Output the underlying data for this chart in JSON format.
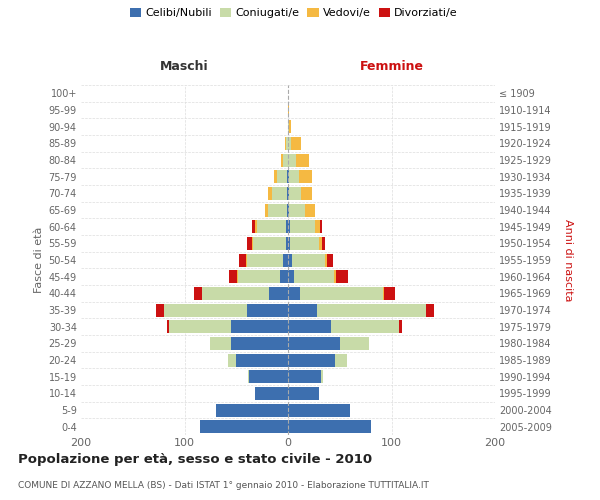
{
  "age_groups": [
    "0-4",
    "5-9",
    "10-14",
    "15-19",
    "20-24",
    "25-29",
    "30-34",
    "35-39",
    "40-44",
    "45-49",
    "50-54",
    "55-59",
    "60-64",
    "65-69",
    "70-74",
    "75-79",
    "80-84",
    "85-89",
    "90-94",
    "95-99",
    "100+"
  ],
  "birth_years": [
    "2005-2009",
    "2000-2004",
    "1995-1999",
    "1990-1994",
    "1985-1989",
    "1980-1984",
    "1975-1979",
    "1970-1974",
    "1965-1969",
    "1960-1964",
    "1955-1959",
    "1950-1954",
    "1945-1949",
    "1940-1944",
    "1935-1939",
    "1930-1934",
    "1925-1929",
    "1920-1924",
    "1915-1919",
    "1910-1914",
    "≤ 1909"
  ],
  "males": {
    "celibi": [
      85,
      70,
      32,
      38,
      50,
      55,
      55,
      40,
      18,
      8,
      5,
      2,
      2,
      1,
      1,
      1,
      0,
      0,
      0,
      0,
      0
    ],
    "coniugati": [
      0,
      0,
      0,
      1,
      8,
      20,
      60,
      80,
      65,
      40,
      35,
      32,
      28,
      18,
      14,
      10,
      5,
      2,
      0,
      0,
      0
    ],
    "vedovi": [
      0,
      0,
      0,
      0,
      0,
      0,
      0,
      0,
      0,
      1,
      1,
      1,
      2,
      3,
      4,
      3,
      2,
      1,
      0,
      0,
      0
    ],
    "divorziati": [
      0,
      0,
      0,
      0,
      0,
      0,
      2,
      8,
      8,
      8,
      6,
      5,
      3,
      0,
      0,
      0,
      0,
      0,
      0,
      0,
      0
    ]
  },
  "females": {
    "nubili": [
      80,
      60,
      30,
      32,
      45,
      50,
      42,
      28,
      12,
      6,
      4,
      2,
      2,
      1,
      1,
      1,
      0,
      0,
      0,
      0,
      0
    ],
    "coniugate": [
      0,
      0,
      0,
      2,
      12,
      28,
      65,
      105,
      80,
      38,
      32,
      28,
      24,
      15,
      12,
      10,
      8,
      3,
      1,
      0,
      0
    ],
    "vedove": [
      0,
      0,
      0,
      0,
      0,
      0,
      0,
      0,
      1,
      2,
      2,
      3,
      5,
      10,
      10,
      12,
      12,
      10,
      2,
      1,
      0
    ],
    "divorziate": [
      0,
      0,
      0,
      0,
      0,
      0,
      3,
      8,
      10,
      12,
      5,
      3,
      2,
      0,
      0,
      0,
      0,
      0,
      0,
      0,
      0
    ]
  },
  "colors": {
    "celibi_nubili": "#3d6faf",
    "coniugati": "#c8dba8",
    "vedovi": "#f5b942",
    "divorziati": "#cc1111"
  },
  "xlim": 200,
  "title": "Popolazione per età, sesso e stato civile - 2010",
  "subtitle": "COMUNE DI AZZANO MELLA (BS) - Dati ISTAT 1° gennaio 2010 - Elaborazione TUTTITALIA.IT",
  "ylabel_left": "Fasce di età",
  "ylabel_right": "Anni di nascita",
  "label_maschi": "Maschi",
  "label_femmine": "Femmine",
  "background_color": "#ffffff",
  "grid_color": "#cccccc",
  "legend_labels": [
    "Celibi/Nubili",
    "Coniugati/e",
    "Vedovi/e",
    "Divorziati/e"
  ]
}
